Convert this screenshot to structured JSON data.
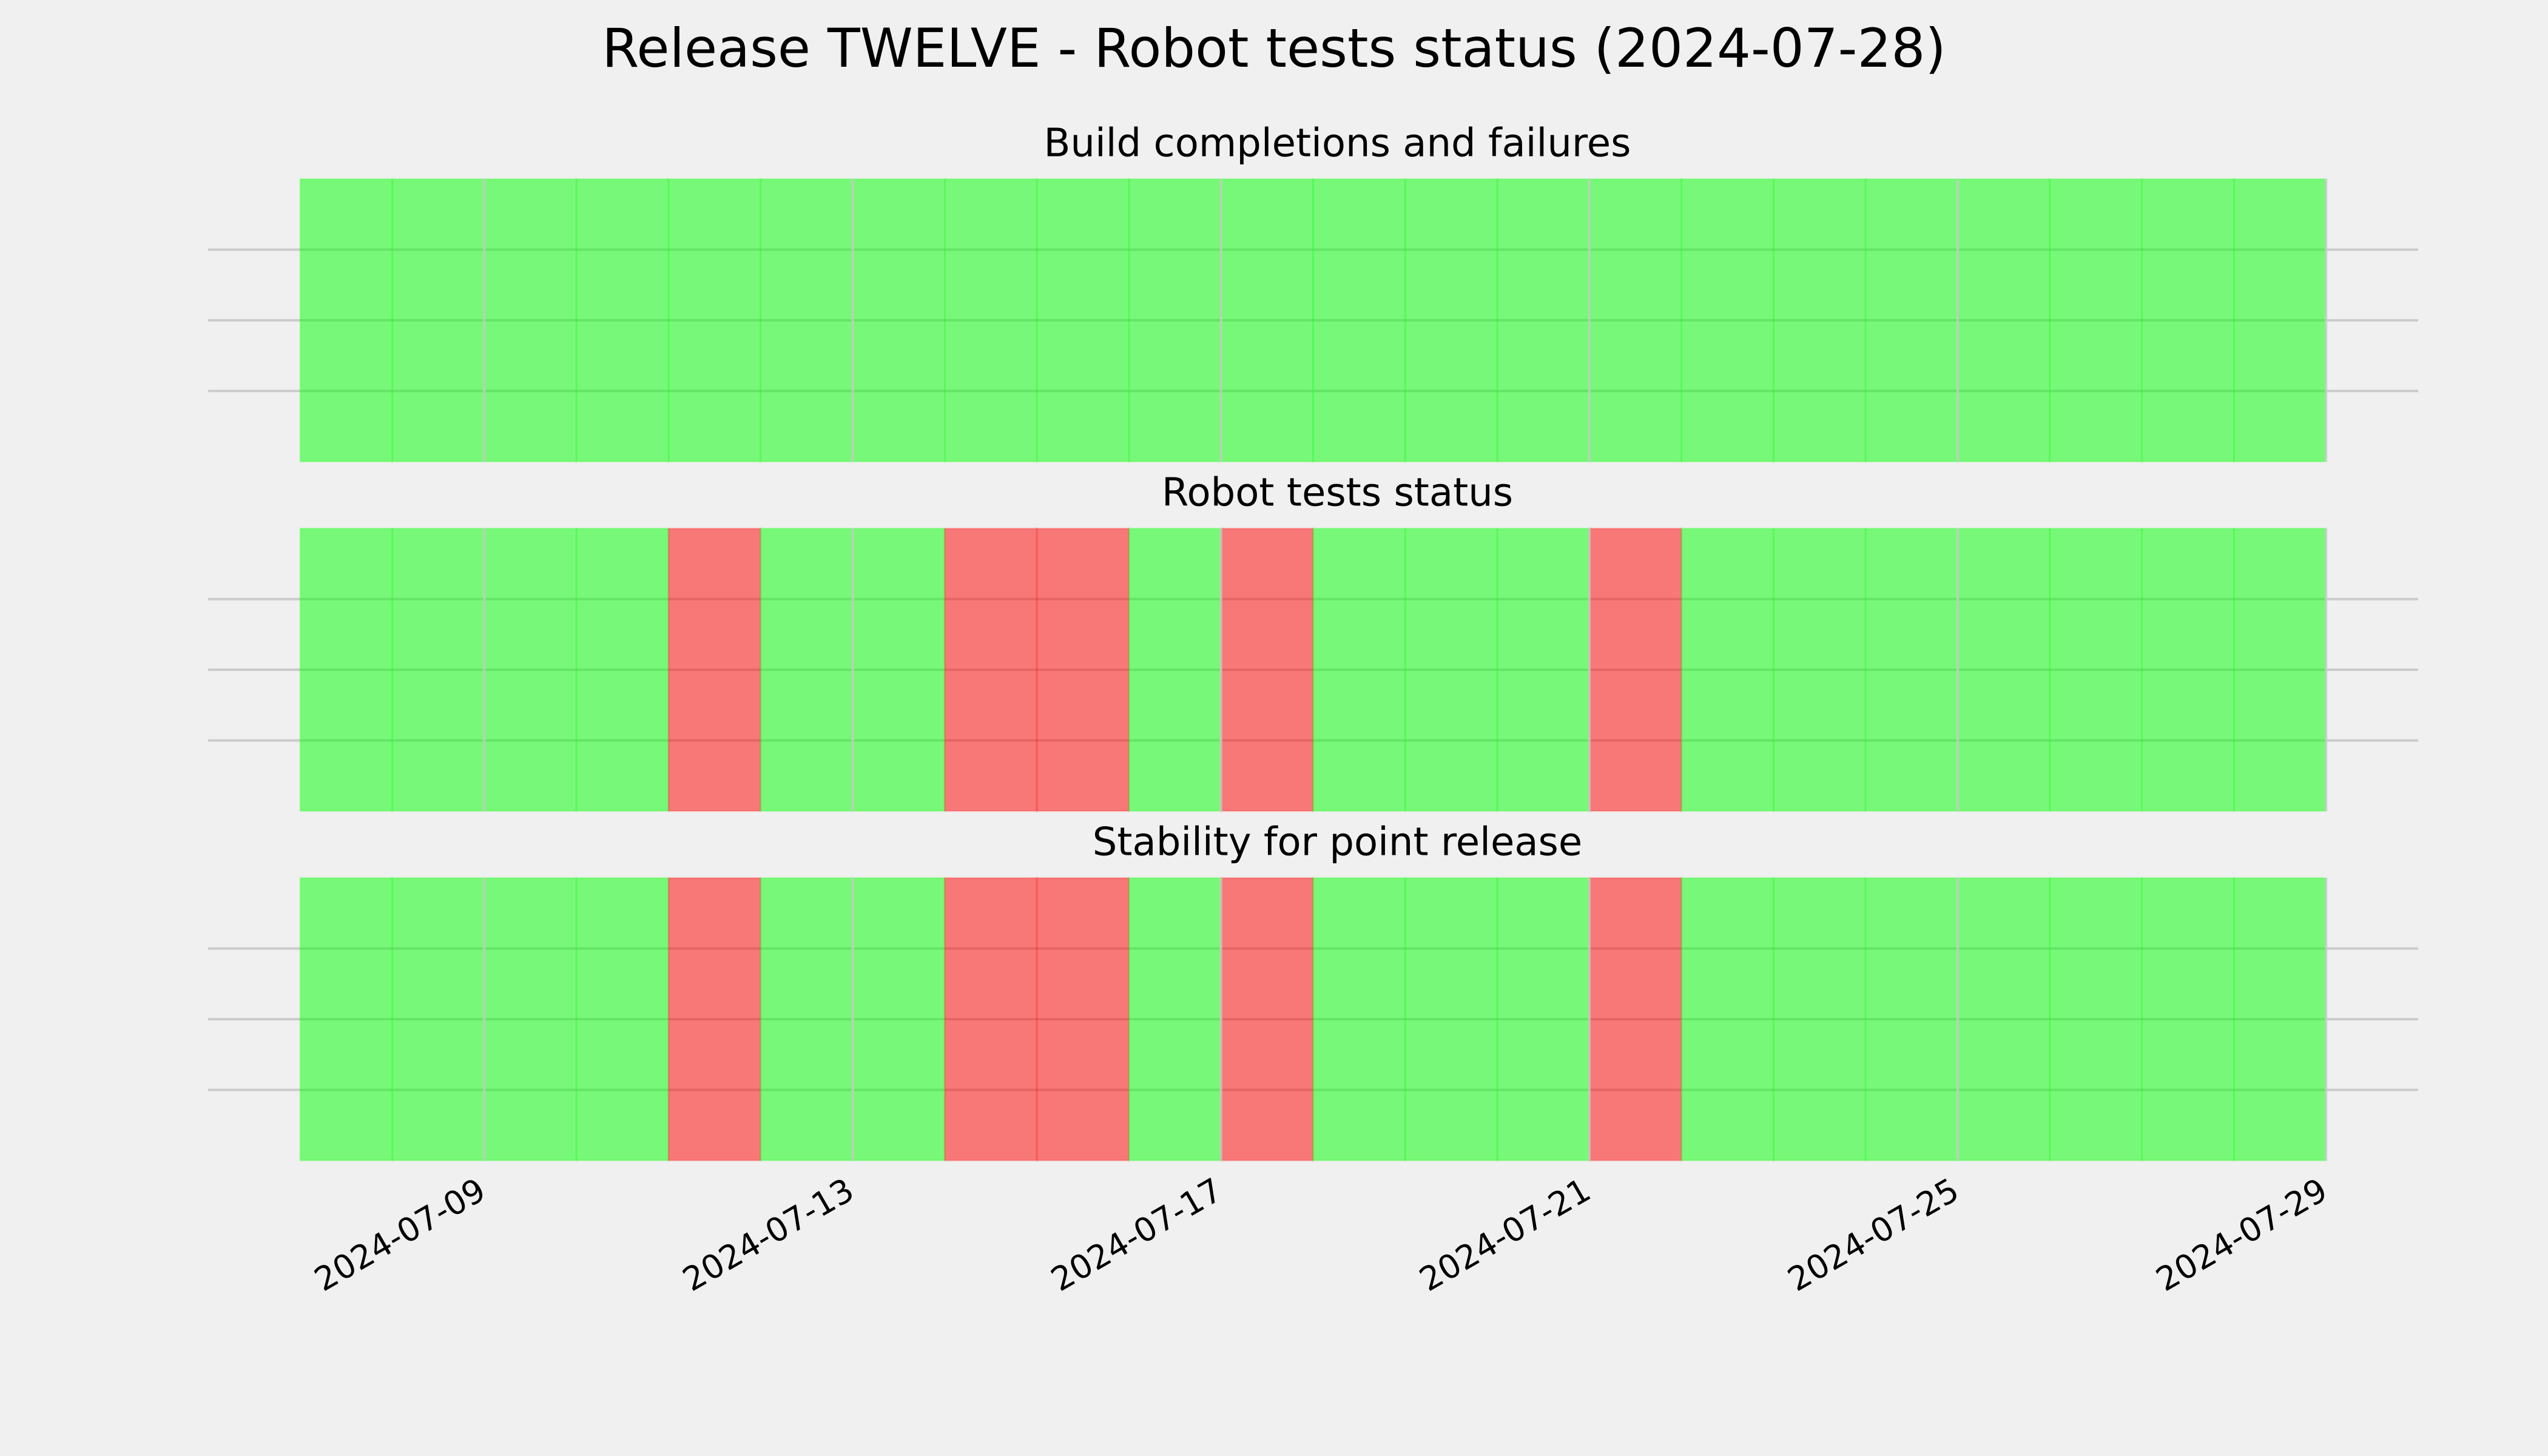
{
  "title": "Release TWELVE - Robot tests status (2024-07-28)",
  "chart_data": [
    {
      "type": "bar",
      "title": "Build completions and failures",
      "x": [
        "2024-07-07",
        "2024-07-08",
        "2024-07-09",
        "2024-07-10",
        "2024-07-11",
        "2024-07-12",
        "2024-07-13",
        "2024-07-14",
        "2024-07-15",
        "2024-07-16",
        "2024-07-17",
        "2024-07-18",
        "2024-07-19",
        "2024-07-20",
        "2024-07-21",
        "2024-07-22",
        "2024-07-23",
        "2024-07-24",
        "2024-07-25",
        "2024-07-26",
        "2024-07-27",
        "2024-07-28"
      ],
      "values": [
        1,
        1,
        1,
        1,
        1,
        1,
        1,
        1,
        1,
        1,
        1,
        1,
        1,
        1,
        1,
        1,
        1,
        1,
        1,
        1,
        1,
        1
      ],
      "colors": [
        "#ff0000",
        "#00ff00"
      ],
      "xlim": [
        "2024-07-06",
        "2024-07-30"
      ],
      "xticks": [
        "2024-07-09",
        "2024-07-13",
        "2024-07-17",
        "2024-07-21",
        "2024-07-25",
        "2024-07-29"
      ]
    },
    {
      "type": "bar",
      "title": "Robot tests status",
      "x": [
        "2024-07-07",
        "2024-07-08",
        "2024-07-09",
        "2024-07-10",
        "2024-07-11",
        "2024-07-12",
        "2024-07-13",
        "2024-07-14",
        "2024-07-15",
        "2024-07-16",
        "2024-07-17",
        "2024-07-18",
        "2024-07-19",
        "2024-07-20",
        "2024-07-21",
        "2024-07-22",
        "2024-07-23",
        "2024-07-24",
        "2024-07-25",
        "2024-07-26",
        "2024-07-27",
        "2024-07-28"
      ],
      "values": [
        1,
        1,
        1,
        1,
        0,
        1,
        1,
        0,
        0,
        1,
        0,
        1,
        1,
        1,
        0,
        1,
        1,
        1,
        1,
        1,
        1,
        1
      ],
      "colors": [
        "#ff0000",
        "#00ff00"
      ],
      "xlim": [
        "2024-07-06",
        "2024-07-30"
      ],
      "xticks": [
        "2024-07-09",
        "2024-07-13",
        "2024-07-17",
        "2024-07-21",
        "2024-07-25",
        "2024-07-29"
      ]
    },
    {
      "type": "bar",
      "title": "Stability for point release",
      "x": [
        "2024-07-07",
        "2024-07-08",
        "2024-07-09",
        "2024-07-10",
        "2024-07-11",
        "2024-07-12",
        "2024-07-13",
        "2024-07-14",
        "2024-07-15",
        "2024-07-16",
        "2024-07-17",
        "2024-07-18",
        "2024-07-19",
        "2024-07-20",
        "2024-07-21",
        "2024-07-22",
        "2024-07-23",
        "2024-07-24",
        "2024-07-25",
        "2024-07-26",
        "2024-07-27",
        "2024-07-28"
      ],
      "values": [
        1,
        1,
        1,
        1,
        0,
        1,
        1,
        0,
        0,
        1,
        0,
        1,
        1,
        1,
        0,
        1,
        1,
        1,
        1,
        1,
        1,
        1
      ],
      "colors": [
        "#ff0000",
        "#00ff00"
      ],
      "xlim": [
        "2024-07-06",
        "2024-07-30"
      ],
      "xticks": [
        "2024-07-09",
        "2024-07-13",
        "2024-07-17",
        "2024-07-21",
        "2024-07-25",
        "2024-07-29"
      ]
    }
  ]
}
